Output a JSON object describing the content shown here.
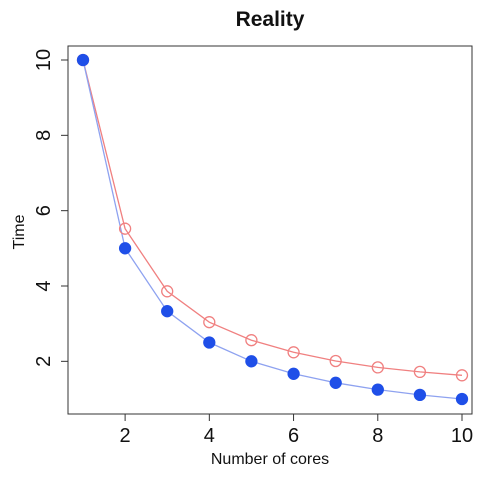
{
  "chart_data": {
    "type": "line",
    "title": "Reality",
    "xlabel": "Number of cores",
    "ylabel": "Time",
    "xlim": [
      1,
      10
    ],
    "ylim": [
      1,
      10
    ],
    "x": [
      1,
      2,
      3,
      4,
      5,
      6,
      7,
      8,
      9,
      10
    ],
    "x_ticks": [
      2,
      4,
      6,
      8,
      10
    ],
    "y_ticks": [
      2,
      4,
      6,
      8,
      10
    ],
    "grid": false,
    "legend": "none",
    "series": [
      {
        "values": [
          10,
          5.52,
          3.86,
          3.04,
          2.56,
          2.24,
          2.01,
          1.84,
          1.72,
          1.63
        ],
        "color": "#f08080",
        "marker": "open-circle"
      },
      {
        "values": [
          10,
          5.0,
          3.33,
          2.5,
          2.0,
          1.67,
          1.43,
          1.25,
          1.11,
          1.0
        ],
        "color": "#1f4fe8",
        "line_color": "#8ea2f0",
        "marker": "filled-circle"
      }
    ]
  }
}
